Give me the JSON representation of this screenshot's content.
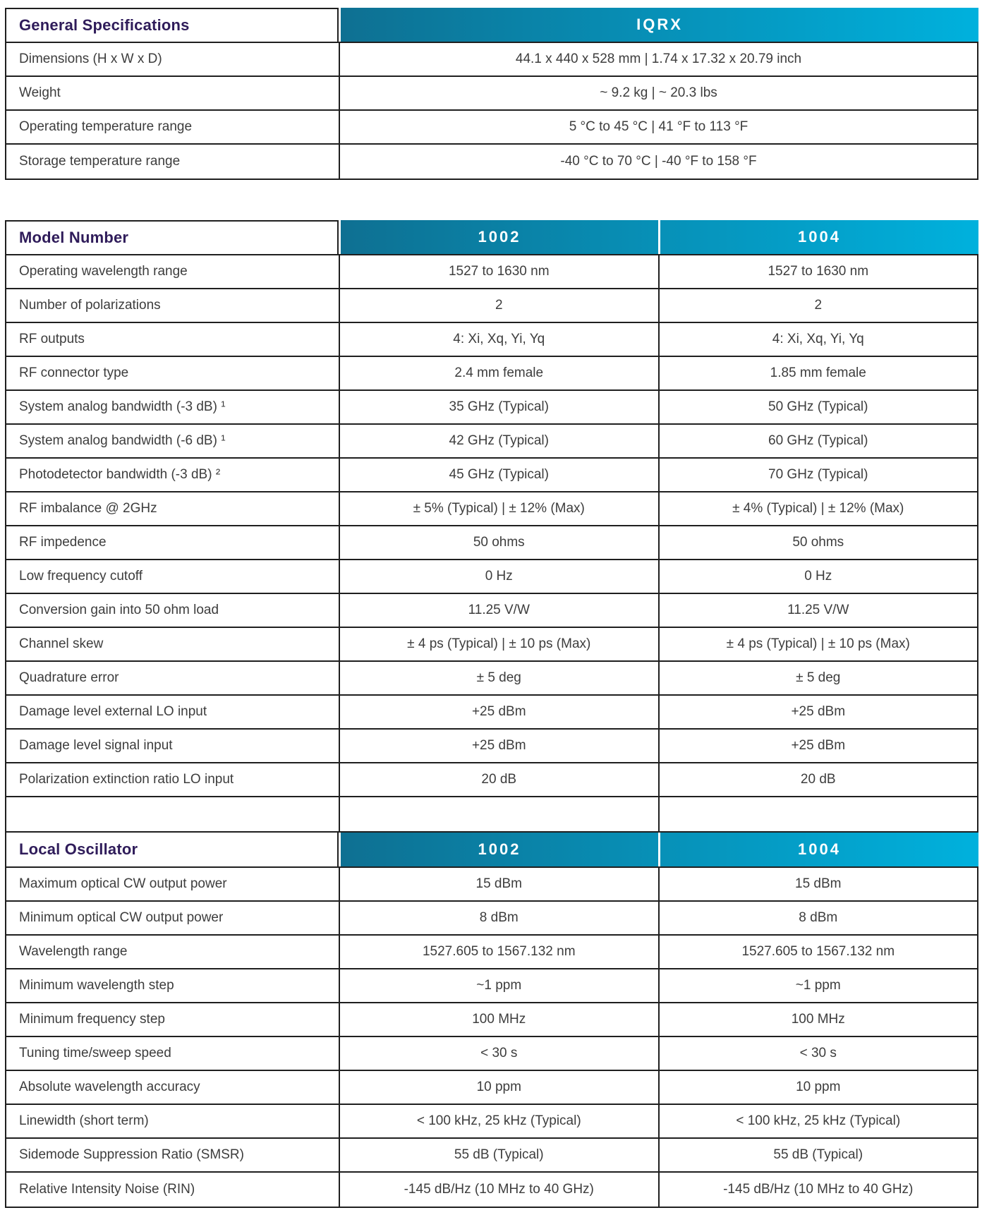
{
  "colors": {
    "gradient_start": "#0E7092",
    "gradient_end": "#00B1DD",
    "section_title": "#2F1C5A",
    "border": "#1F1F1F",
    "text": "#3D3D3D",
    "header_text": "#FFFFFF",
    "background": "#FFFFFF"
  },
  "sections": [
    {
      "title": "General Specifications",
      "columns": [
        "IQRX"
      ],
      "trailing_empty_row": false,
      "rows": [
        {
          "label": "Dimensions (H x W x D)",
          "values": [
            "44.1 x 440 x 528 mm | 1.74 x 17.32 x 20.79 inch"
          ]
        },
        {
          "label": "Weight",
          "values": [
            "~ 9.2 kg | ~ 20.3 lbs"
          ]
        },
        {
          "label": "Operating temperature range",
          "values": [
            "5 °C to 45 °C | 41 °F to 113 °F"
          ]
        },
        {
          "label": "Storage temperature range",
          "values": [
            "-40 °C to 70 °C | -40 °F to 158 °F"
          ]
        }
      ]
    },
    {
      "title": "Model Number",
      "columns": [
        "1002",
        "1004"
      ],
      "trailing_empty_row": true,
      "rows": [
        {
          "label": "Operating wavelength range",
          "values": [
            "1527 to 1630 nm",
            "1527 to 1630 nm"
          ]
        },
        {
          "label": "Number of polarizations",
          "values": [
            "2",
            "2"
          ]
        },
        {
          "label": "RF outputs",
          "values": [
            "4: Xi, Xq, Yi, Yq",
            "4: Xi, Xq, Yi, Yq"
          ]
        },
        {
          "label": "RF connector type",
          "values": [
            "2.4 mm female",
            "1.85 mm female"
          ]
        },
        {
          "label": "System analog bandwidth (-3 dB) ¹",
          "values": [
            "35 GHz (Typical)",
            "50 GHz (Typical)"
          ]
        },
        {
          "label": "System analog bandwidth (-6 dB) ¹",
          "values": [
            "42 GHz (Typical)",
            "60 GHz (Typical)"
          ]
        },
        {
          "label": "Photodetector bandwidth (-3 dB) ²",
          "values": [
            "45 GHz (Typical)",
            "70 GHz (Typical)"
          ]
        },
        {
          "label": "RF imbalance @ 2GHz",
          "values": [
            "± 5%  (Typical) | ± 12% (Max)",
            "± 4%  (Typical) | ± 12% (Max)"
          ]
        },
        {
          "label": "RF impedence",
          "values": [
            "50 ohms",
            "50 ohms"
          ]
        },
        {
          "label": "Low frequency cutoff",
          "values": [
            "0 Hz",
            "0 Hz"
          ]
        },
        {
          "label": "Conversion gain into 50 ohm load",
          "values": [
            "11.25 V/W",
            "11.25 V/W"
          ]
        },
        {
          "label": "Channel skew",
          "values": [
            "± 4 ps (Typical) | ± 10 ps (Max)",
            "± 4 ps (Typical) | ± 10 ps (Max)"
          ]
        },
        {
          "label": "Quadrature error",
          "values": [
            "± 5 deg",
            "± 5 deg"
          ]
        },
        {
          "label": "Damage level external LO input",
          "values": [
            "+25 dBm",
            "+25 dBm"
          ]
        },
        {
          "label": "Damage level signal input",
          "values": [
            "+25 dBm",
            "+25 dBm"
          ]
        },
        {
          "label": "Polarization extinction ratio LO input",
          "values": [
            "20 dB",
            "20 dB"
          ]
        }
      ]
    },
    {
      "title": "Local Oscillator",
      "columns": [
        "1002",
        "1004"
      ],
      "trailing_empty_row": false,
      "rows": [
        {
          "label": "Maximum optical CW output power",
          "values": [
            "15 dBm",
            "15 dBm"
          ]
        },
        {
          "label": "Minimum optical CW output power",
          "values": [
            "8 dBm",
            "8 dBm"
          ]
        },
        {
          "label": "Wavelength range",
          "values": [
            "1527.605 to 1567.132 nm",
            "1527.605 to 1567.132 nm"
          ]
        },
        {
          "label": "Minimum wavelength step",
          "values": [
            "~1 ppm",
            "~1 ppm"
          ]
        },
        {
          "label": "Minimum frequency step",
          "values": [
            "100 MHz",
            "100 MHz"
          ]
        },
        {
          "label": "Tuning time/sweep speed",
          "values": [
            "< 30 s",
            "< 30 s"
          ]
        },
        {
          "label": "Absolute wavelength accuracy",
          "values": [
            "10 ppm",
            "10 ppm"
          ]
        },
        {
          "label": "Linewidth (short term)",
          "values": [
            "< 100 kHz, 25 kHz (Typical)",
            "< 100 kHz, 25 kHz (Typical)"
          ]
        },
        {
          "label": "Sidemode Suppression Ratio (SMSR)",
          "values": [
            "55 dB (Typical)",
            "55 dB (Typical)"
          ]
        },
        {
          "label": "Relative Intensity Noise (RIN)",
          "values": [
            "-145 dB/Hz (10 MHz to 40 GHz)",
            "-145 dB/Hz (10 MHz to 40 GHz)"
          ]
        }
      ]
    }
  ]
}
